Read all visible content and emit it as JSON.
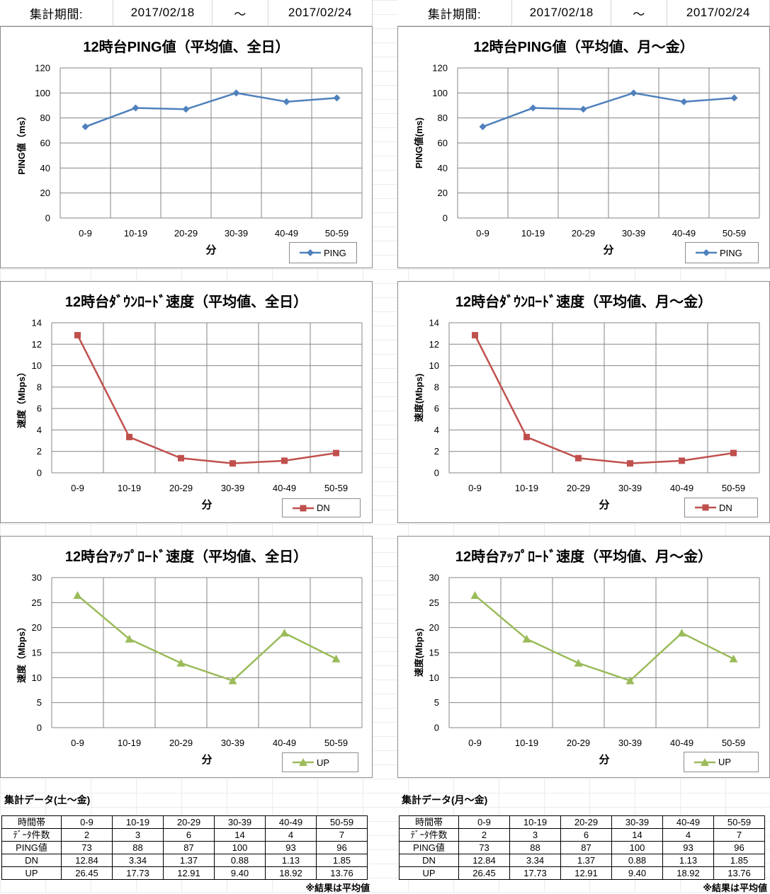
{
  "period_bars": [
    {
      "label": "集計期間:",
      "start": "2017/02/18",
      "sep": "～",
      "end": "2017/02/24"
    },
    {
      "label": "集計期間:",
      "start": "2017/02/18",
      "sep": "～",
      "end": "2017/02/24"
    }
  ],
  "chart_data": [
    {
      "id": "ping-all",
      "type": "line",
      "title": "12時台PING値（平均値、全日）",
      "xlabel": "分",
      "ylabel": "PING値（ms）",
      "categories": [
        "0-9",
        "10-19",
        "20-29",
        "30-39",
        "40-49",
        "50-59"
      ],
      "ylim": [
        0,
        120
      ],
      "yticks": [
        0,
        20,
        40,
        60,
        80,
        100,
        120
      ],
      "series": [
        {
          "name": "PING",
          "values": [
            73,
            88,
            87,
            100,
            93,
            96
          ],
          "color": "#4f81bd",
          "marker": "diamond"
        }
      ]
    },
    {
      "id": "ping-wd",
      "type": "line",
      "title": "12時台PING値（平均値、月～金）",
      "xlabel": "分",
      "ylabel": "PING値(ms)",
      "categories": [
        "0-9",
        "10-19",
        "20-29",
        "30-39",
        "40-49",
        "50-59"
      ],
      "ylim": [
        0,
        120
      ],
      "yticks": [
        0,
        20,
        40,
        60,
        80,
        100,
        120
      ],
      "series": [
        {
          "name": "PING",
          "values": [
            73,
            88,
            87,
            100,
            93,
            96
          ],
          "color": "#4f81bd",
          "marker": "diamond"
        }
      ]
    },
    {
      "id": "dn-all",
      "type": "line",
      "title": "12時台ﾀﾞｳﾝﾛｰﾄﾞ速度（平均値、全日）",
      "xlabel": "分",
      "ylabel": "速度（Mbps）",
      "categories": [
        "0-9",
        "10-19",
        "20-29",
        "30-39",
        "40-49",
        "50-59"
      ],
      "ylim": [
        0,
        14
      ],
      "yticks": [
        0,
        2,
        4,
        6,
        8,
        10,
        12,
        14
      ],
      "series": [
        {
          "name": "DN",
          "values": [
            12.84,
            3.34,
            1.37,
            0.88,
            1.13,
            1.85
          ],
          "color": "#c0504d",
          "marker": "square"
        }
      ]
    },
    {
      "id": "dn-wd",
      "type": "line",
      "title": "12時台ﾀﾞｳﾝﾛｰﾄﾞ速度（平均値、月～金）",
      "xlabel": "分",
      "ylabel": "速度(Mbps)",
      "categories": [
        "0-9",
        "10-19",
        "20-29",
        "30-39",
        "40-49",
        "50-59"
      ],
      "ylim": [
        0,
        14
      ],
      "yticks": [
        0,
        2,
        4,
        6,
        8,
        10,
        12,
        14
      ],
      "series": [
        {
          "name": "DN",
          "values": [
            12.84,
            3.34,
            1.37,
            0.88,
            1.13,
            1.85
          ],
          "color": "#c0504d",
          "marker": "square"
        }
      ]
    },
    {
      "id": "up-all",
      "type": "line",
      "title": "12時台ｱｯﾌﾟﾛｰﾄﾞ速度（平均値、全日）",
      "xlabel": "分",
      "ylabel": "速度（Mbps）",
      "categories": [
        "0-9",
        "10-19",
        "20-29",
        "30-39",
        "40-49",
        "50-59"
      ],
      "ylim": [
        0,
        30
      ],
      "yticks": [
        0,
        5,
        10,
        15,
        20,
        25,
        30
      ],
      "series": [
        {
          "name": "UP",
          "values": [
            26.45,
            17.73,
            12.91,
            9.4,
            18.92,
            13.76
          ],
          "color": "#9bbb59",
          "marker": "triangle"
        }
      ]
    },
    {
      "id": "up-wd",
      "type": "line",
      "title": "12時台ｱｯﾌﾟﾛｰﾄﾞ速度（平均値、月～金）",
      "xlabel": "分",
      "ylabel": "速度(Mbps)",
      "categories": [
        "0-9",
        "10-19",
        "20-29",
        "30-39",
        "40-49",
        "50-59"
      ],
      "ylim": [
        0,
        30
      ],
      "yticks": [
        0,
        5,
        10,
        15,
        20,
        25,
        30
      ],
      "series": [
        {
          "name": "UP",
          "values": [
            26.45,
            17.73,
            12.91,
            9.4,
            18.92,
            13.76
          ],
          "color": "#9bbb59",
          "marker": "triangle"
        }
      ]
    }
  ],
  "summary_tables": [
    {
      "title": "集計データ(土～金)",
      "header": [
        "時間帯",
        "0-9",
        "10-19",
        "20-29",
        "30-39",
        "40-49",
        "50-59"
      ],
      "rows": [
        [
          "ﾃﾞｰﾀ件数",
          "2",
          "3",
          "6",
          "14",
          "4",
          "7"
        ],
        [
          "PING値",
          "73",
          "88",
          "87",
          "100",
          "93",
          "96"
        ],
        [
          "DN",
          "12.84",
          "3.34",
          "1.37",
          "0.88",
          "1.13",
          "1.85"
        ],
        [
          "UP",
          "26.45",
          "17.73",
          "12.91",
          "9.40",
          "18.92",
          "13.76"
        ]
      ],
      "note": "※結果は平均値"
    },
    {
      "title": "集計データ(月～金)",
      "header": [
        "時間帯",
        "0-9",
        "10-19",
        "20-29",
        "30-39",
        "40-49",
        "50-59"
      ],
      "rows": [
        [
          "ﾃﾞｰﾀ件数",
          "2",
          "3",
          "6",
          "14",
          "4",
          "7"
        ],
        [
          "PING値",
          "73",
          "88",
          "87",
          "100",
          "93",
          "96"
        ],
        [
          "DN",
          "12.84",
          "3.34",
          "1.37",
          "0.88",
          "1.13",
          "1.85"
        ],
        [
          "UP",
          "26.45",
          "17.73",
          "12.91",
          "9.40",
          "18.92",
          "13.76"
        ]
      ],
      "note": "※結果は平均値"
    }
  ]
}
